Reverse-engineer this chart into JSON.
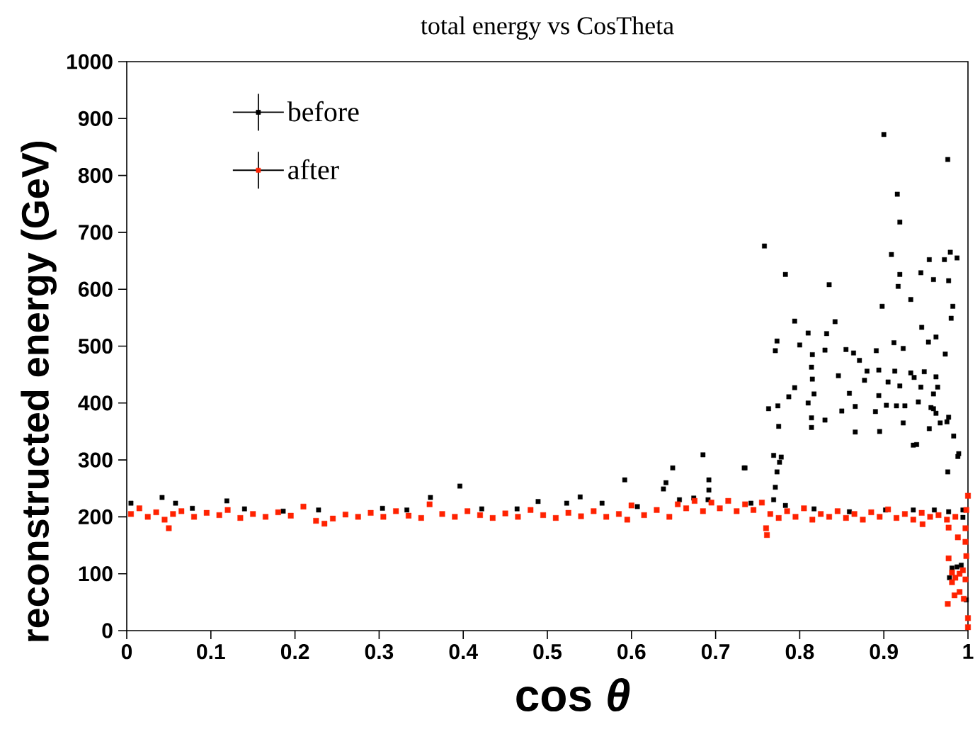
{
  "chart_data": {
    "type": "scatter",
    "title": "total energy vs CosTheta",
    "xlabel": "cos *θ*",
    "ylabel": "reconstructed energy (GeV)",
    "xlim": [
      0,
      1
    ],
    "ylim": [
      0,
      1000
    ],
    "xticks": [
      0,
      0.1,
      0.2,
      0.3,
      0.4,
      0.5,
      0.6,
      0.7,
      0.8,
      0.9,
      1
    ],
    "yticks": [
      0,
      100,
      200,
      300,
      400,
      500,
      600,
      700,
      800,
      900,
      1000
    ],
    "legend": "top left",
    "marker": "square",
    "series": [
      {
        "name": "before",
        "color": "#000000",
        "x": [
          0.9,
          0.976,
          0.916,
          0.919,
          0.758,
          0.783,
          0.835,
          0.909,
          0.979,
          0.987,
          0.954,
          0.972,
          0.944,
          0.919,
          0.959,
          0.977,
          0.917,
          0.932,
          0.898,
          0.982,
          0.98,
          0.794,
          0.842,
          0.81,
          0.832,
          0.945,
          0.962,
          0.773,
          0.771,
          0.8,
          0.83,
          0.855,
          0.864,
          0.815,
          0.871,
          0.891,
          0.912,
          0.923,
          0.953,
          0.973,
          0.814,
          0.88,
          0.894,
          0.913,
          0.932,
          0.948,
          0.815,
          0.846,
          0.877,
          0.905,
          0.936,
          0.962,
          0.794,
          0.817,
          0.787,
          0.859,
          0.894,
          0.919,
          0.944,
          0.964,
          0.959,
          0.763,
          0.774,
          0.81,
          0.866,
          0.903,
          0.915,
          0.925,
          0.941,
          0.956,
          0.775,
          0.814,
          0.85,
          0.89,
          0.814,
          0.83,
          0.959,
          0.962,
          0.967,
          0.975,
          0.866,
          0.895,
          0.923,
          0.935,
          0.939,
          0.954,
          0.977,
          0.983,
          0.988,
          0.976,
          0.769,
          0.778,
          0.776,
          0.773,
          0.771,
          0.769,
          0.734,
          0.649,
          0.641,
          0.638,
          0.685,
          0.692,
          0.692,
          0.735,
          0.592,
          0.396,
          0.539,
          0.361,
          0.005,
          0.042,
          0.058,
          0.078,
          0.119,
          0.14,
          0.186,
          0.228,
          0.304,
          0.333,
          0.422,
          0.464,
          0.489,
          0.523,
          0.565,
          0.607,
          0.657,
          0.674,
          0.691,
          0.716,
          0.742,
          0.783,
          0.817,
          0.859,
          0.902,
          0.935,
          0.96,
          0.977,
          0.994,
          0.981,
          0.987,
          0.992,
          0.978,
          0.989,
          0.994,
          0.998
        ],
        "values": [
          872,
          828,
          767,
          718,
          676,
          626,
          608,
          661,
          665,
          655,
          652,
          652,
          629,
          626,
          617,
          615,
          605,
          582,
          570,
          570,
          549,
          544,
          543,
          523,
          522,
          533,
          516,
          509,
          492,
          502,
          493,
          494,
          488,
          485,
          475,
          492,
          506,
          496,
          507,
          486,
          463,
          456,
          458,
          456,
          453,
          455,
          442,
          448,
          440,
          437,
          445,
          446,
          427,
          416,
          411,
          417,
          413,
          430,
          428,
          428,
          416,
          390,
          395,
          400,
          394,
          396,
          395,
          395,
          402,
          392,
          359,
          374,
          386,
          385,
          357,
          370,
          390,
          382,
          365,
          367,
          349,
          350,
          365,
          326,
          327,
          355,
          375,
          342,
          306,
          279,
          308,
          305,
          296,
          279,
          252,
          230,
          286,
          286,
          260,
          249,
          309,
          265,
          247,
          286,
          265,
          254,
          235,
          234,
          224,
          234,
          224,
          215,
          228,
          214,
          210,
          212,
          215,
          212,
          214,
          214,
          227,
          224,
          224,
          218,
          230,
          233,
          230,
          null,
          224,
          220,
          214,
          209,
          212,
          212,
          212,
          209,
          199,
          110,
          112,
          115,
          93,
          311,
          212,
          54
        ]
      },
      {
        "name": "after",
        "color": "#ff2200",
        "x": [
          0.005,
          0.015,
          0.025,
          0.035,
          0.045,
          0.05,
          0.055,
          0.065,
          0.08,
          0.095,
          0.11,
          0.12,
          0.135,
          0.15,
          0.165,
          0.18,
          0.195,
          0.21,
          0.225,
          0.235,
          0.245,
          0.26,
          0.275,
          0.29,
          0.305,
          0.32,
          0.335,
          0.35,
          0.36,
          0.375,
          0.39,
          0.405,
          0.42,
          0.435,
          0.45,
          0.465,
          0.48,
          0.495,
          0.51,
          0.525,
          0.54,
          0.555,
          0.57,
          0.585,
          0.595,
          0.6,
          0.615,
          0.63,
          0.645,
          0.655,
          0.665,
          0.675,
          0.685,
          0.695,
          0.705,
          0.715,
          0.725,
          0.735,
          0.745,
          0.755,
          0.765,
          0.775,
          0.785,
          0.795,
          0.805,
          0.815,
          0.825,
          0.835,
          0.845,
          0.855,
          0.865,
          0.875,
          0.885,
          0.895,
          0.905,
          0.915,
          0.925,
          0.935,
          0.945,
          0.955,
          0.965,
          0.975,
          0.985,
          0.761,
          0.76,
          0.946,
          0.977,
          0.988,
          1.0,
          0.998,
          0.997,
          0.997,
          0.998,
          0.977,
          0.981,
          0.985,
          0.99,
          0.994,
          0.981,
          0.984,
          0.976,
          0.99,
          0.995,
          1.0,
          1.0,
          0.997
        ],
        "values": [
          205,
          215,
          200,
          208,
          195,
          180,
          205,
          210,
          200,
          207,
          203,
          212,
          198,
          205,
          200,
          208,
          202,
          218,
          193,
          188,
          197,
          204,
          200,
          207,
          200,
          210,
          202,
          198,
          222,
          205,
          200,
          210,
          203,
          198,
          206,
          200,
          212,
          203,
          198,
          207,
          201,
          210,
          200,
          205,
          195,
          220,
          203,
          212,
          200,
          222,
          215,
          228,
          210,
          225,
          215,
          228,
          210,
          222,
          212,
          225,
          205,
          198,
          210,
          200,
          215,
          195,
          205,
          200,
          210,
          198,
          205,
          195,
          208,
          200,
          213,
          198,
          205,
          195,
          207,
          200,
          203,
          195,
          200,
          168,
          180,
          187,
          181,
          164,
          237,
          212,
          180,
          156,
          131,
          127,
          102,
          93,
          100,
          106,
          85,
          62,
          47,
          68,
          56,
          22,
          6,
          90
        ]
      }
    ]
  }
}
